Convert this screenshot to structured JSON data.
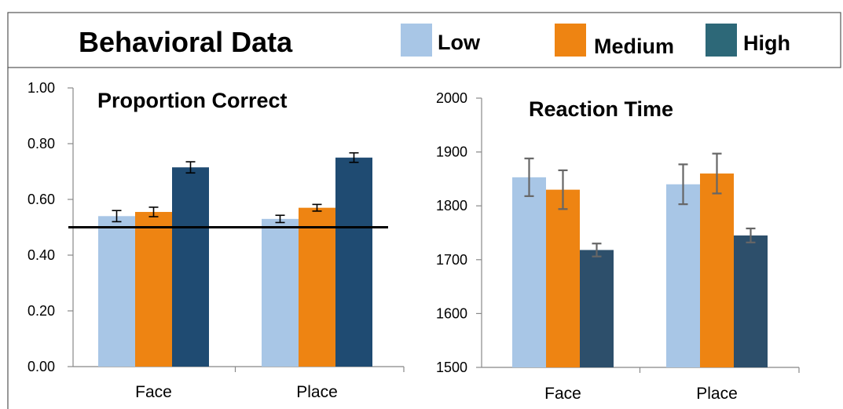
{
  "header": {
    "title": "Behavioral Data",
    "legend": [
      {
        "label": "Low",
        "color": "#a8c6e6"
      },
      {
        "label": "Medium",
        "color": "#ee8412"
      },
      {
        "label": "High",
        "color": "#2d6878"
      }
    ]
  },
  "chart_data": [
    {
      "type": "bar",
      "title": "Proportion Correct",
      "categories": [
        "Face",
        "Place"
      ],
      "series": [
        {
          "name": "Low",
          "color": "#a8c6e6",
          "values": [
            0.54,
            0.53
          ],
          "errors": [
            0.02,
            0.013
          ]
        },
        {
          "name": "Medium",
          "color": "#ee8412",
          "values": [
            0.555,
            0.57
          ],
          "errors": [
            0.017,
            0.012
          ]
        },
        {
          "name": "High",
          "color": "#1f4b72",
          "values": [
            0.715,
            0.75
          ],
          "errors": [
            0.02,
            0.017
          ]
        }
      ],
      "ylim": [
        0,
        1
      ],
      "yticks": [
        "0.00",
        "0.20",
        "0.40",
        "0.60",
        "0.80",
        "1.00"
      ],
      "reference_line": 0.5,
      "grid": false,
      "legend": "top"
    },
    {
      "type": "bar",
      "title": "Reaction Time",
      "categories": [
        "Face",
        "Place"
      ],
      "series": [
        {
          "name": "Low",
          "color": "#a8c6e6",
          "values": [
            1853,
            1840
          ],
          "errors": [
            35,
            37
          ]
        },
        {
          "name": "Medium",
          "color": "#ee8412",
          "values": [
            1830,
            1860
          ],
          "errors": [
            36,
            37
          ]
        },
        {
          "name": "High",
          "color": "#2d4f6b",
          "values": [
            1718,
            1745
          ],
          "errors": [
            12,
            13
          ]
        }
      ],
      "ylim": [
        1500,
        2000
      ],
      "yticks": [
        "1500",
        "1600",
        "1700",
        "1800",
        "1900",
        "2000"
      ],
      "grid": false,
      "legend": "top"
    }
  ]
}
